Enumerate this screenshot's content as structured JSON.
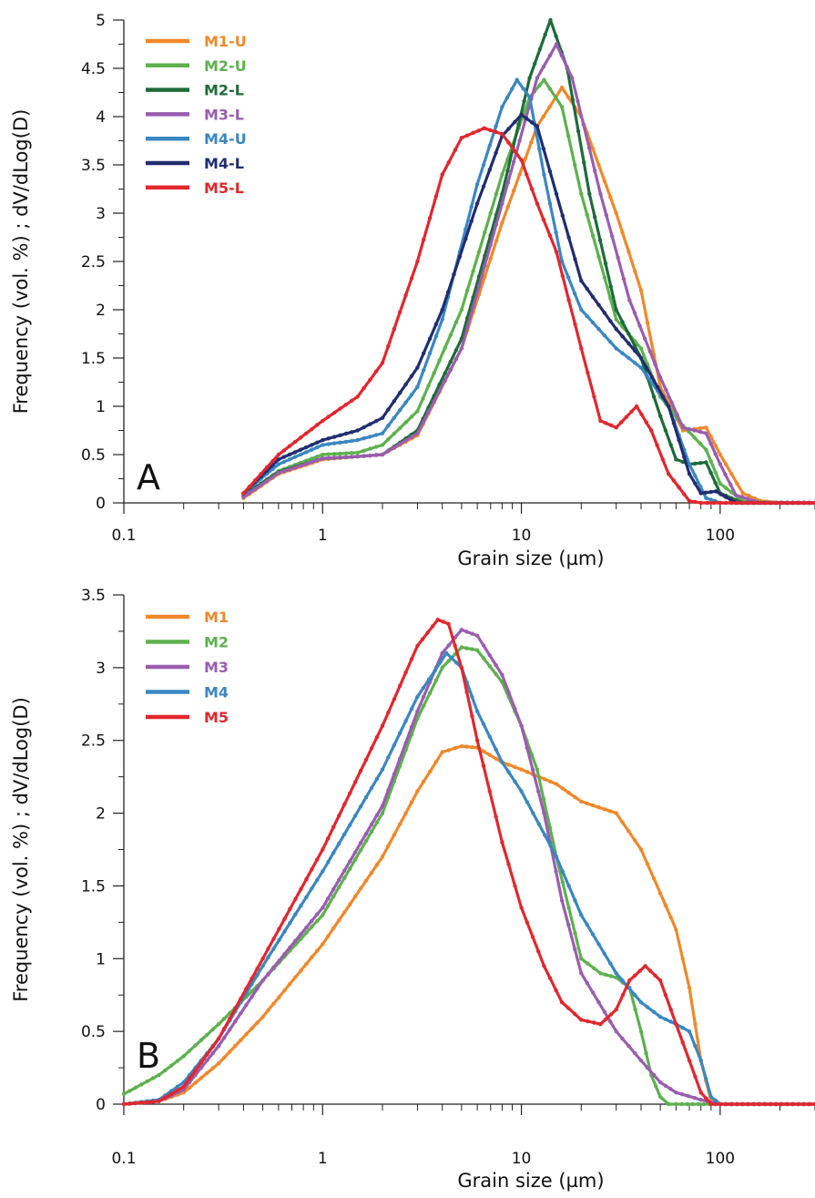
{
  "chart_data": [
    {
      "panel": "A",
      "type": "line",
      "xscale": "log",
      "xlim": [
        0.1,
        300
      ],
      "ylim": [
        0,
        5
      ],
      "xticks": [
        0.1,
        1,
        10,
        100
      ],
      "yticks": [
        0,
        0.5,
        1,
        1.5,
        2,
        2.5,
        3,
        3.5,
        4,
        4.5,
        5
      ],
      "xtick_labels": [
        "0.1",
        "1",
        "10",
        "100"
      ],
      "ytick_labels": [
        "0",
        "0.5",
        "1",
        "1.5",
        "2",
        "2.5",
        "3",
        "3.5",
        "4",
        "4.5",
        "5"
      ],
      "xlabel": "Grain size (µm)",
      "ylabel": "Frequency (vol. %) ; dV/dLog(D)",
      "legend_position": "top-left",
      "series": [
        {
          "name": "M1-U",
          "color": "#F0882A",
          "x": [
            0.4,
            0.6,
            1,
            1.5,
            2,
            3,
            5,
            8,
            12,
            16,
            20,
            30,
            40,
            50,
            65,
            85,
            100,
            130,
            160,
            200,
            300
          ],
          "values": [
            0.05,
            0.3,
            0.45,
            0.48,
            0.5,
            0.7,
            1.6,
            2.9,
            3.9,
            4.3,
            4.0,
            3.0,
            2.2,
            1.2,
            0.75,
            0.78,
            0.5,
            0.1,
            0.02,
            0.0,
            0.0
          ]
        },
        {
          "name": "M2-U",
          "color": "#5DB14E",
          "x": [
            0.4,
            0.6,
            1,
            1.5,
            2,
            3,
            5,
            8,
            11,
            13,
            16,
            20,
            30,
            40,
            50,
            65,
            85,
            100,
            130,
            160,
            300
          ],
          "values": [
            0.07,
            0.33,
            0.5,
            0.52,
            0.6,
            0.95,
            2.0,
            3.4,
            4.2,
            4.38,
            4.1,
            3.2,
            1.9,
            1.6,
            1.1,
            0.8,
            0.55,
            0.2,
            0.02,
            0.0,
            0.0
          ]
        },
        {
          "name": "M2-L",
          "color": "#1E6B3A",
          "x": [
            0.4,
            0.6,
            1,
            1.5,
            2,
            3,
            5,
            8,
            11,
            14,
            17,
            22,
            30,
            40,
            50,
            60,
            70,
            85,
            100,
            130,
            300
          ],
          "values": [
            0.08,
            0.32,
            0.46,
            0.48,
            0.5,
            0.75,
            1.7,
            3.2,
            4.4,
            5.0,
            4.5,
            3.2,
            2.0,
            1.5,
            0.9,
            0.45,
            0.4,
            0.42,
            0.1,
            0.0,
            0.0
          ]
        },
        {
          "name": "M3-L",
          "color": "#9A5DB0",
          "x": [
            0.4,
            0.6,
            1,
            1.5,
            2,
            3,
            5,
            8,
            12,
            15,
            18,
            25,
            35,
            50,
            65,
            85,
            100,
            120,
            160,
            300
          ],
          "values": [
            0.06,
            0.31,
            0.46,
            0.48,
            0.5,
            0.72,
            1.6,
            3.1,
            4.4,
            4.75,
            4.4,
            3.2,
            2.1,
            1.3,
            0.78,
            0.72,
            0.4,
            0.08,
            0.0,
            0.0
          ]
        },
        {
          "name": "M4-U",
          "color": "#3A87C2",
          "x": [
            0.4,
            0.6,
            1,
            1.5,
            2,
            3,
            4,
            6,
            8,
            9.5,
            11,
            13,
            16,
            20,
            30,
            40,
            55,
            70,
            85,
            100,
            160,
            300
          ],
          "values": [
            0.1,
            0.4,
            0.6,
            0.65,
            0.72,
            1.2,
            1.9,
            3.3,
            4.1,
            4.38,
            4.2,
            3.4,
            2.5,
            2.0,
            1.6,
            1.4,
            1.0,
            0.4,
            0.05,
            0.0,
            0.0,
            0.0
          ]
        },
        {
          "name": "M4-L",
          "color": "#212D70",
          "x": [
            0.4,
            0.6,
            1,
            1.5,
            2,
            3,
            4,
            6,
            8,
            10,
            12,
            15,
            20,
            30,
            40,
            55,
            70,
            80,
            95,
            120,
            300
          ],
          "values": [
            0.1,
            0.45,
            0.65,
            0.75,
            0.88,
            1.4,
            2.0,
            3.1,
            3.8,
            4.02,
            3.9,
            3.2,
            2.3,
            1.8,
            1.5,
            1.0,
            0.3,
            0.1,
            0.12,
            0.0,
            0.0
          ]
        },
        {
          "name": "M5-L",
          "color": "#E3262E",
          "x": [
            0.4,
            0.6,
            1,
            1.5,
            2,
            3,
            4,
            5,
            6.5,
            8,
            10,
            12,
            15,
            20,
            25,
            30,
            38,
            45,
            55,
            70,
            80,
            100,
            300
          ],
          "values": [
            0.1,
            0.5,
            0.85,
            1.1,
            1.45,
            2.5,
            3.4,
            3.78,
            3.88,
            3.82,
            3.55,
            3.1,
            2.6,
            1.6,
            0.85,
            0.78,
            1.0,
            0.75,
            0.3,
            0.02,
            0.0,
            0.0,
            0.0
          ]
        }
      ]
    },
    {
      "panel": "B",
      "type": "line",
      "xscale": "log",
      "xlim": [
        0.1,
        300
      ],
      "ylim": [
        0,
        3.5
      ],
      "xticks": [
        0.1,
        1,
        10,
        100
      ],
      "yticks": [
        0,
        0.5,
        1,
        1.5,
        2,
        2.5,
        3,
        3.5
      ],
      "xtick_labels": [
        "0.1",
        "1",
        "10",
        "100"
      ],
      "ytick_labels": [
        "0",
        "0.5",
        "1",
        "1.5",
        "2",
        "2.5",
        "3",
        "3.5"
      ],
      "xlabel": "Grain size (µm)",
      "ylabel": "Frequency (vol. %) ; dV/dLog(D)",
      "legend_position": "top-left",
      "series": [
        {
          "name": "M1",
          "color": "#F0882A",
          "x": [
            0.1,
            0.15,
            0.2,
            0.3,
            0.5,
            1,
            2,
            3,
            4,
            5,
            6,
            8,
            10,
            15,
            20,
            30,
            40,
            50,
            60,
            70,
            80,
            90,
            100,
            300
          ],
          "values": [
            0.0,
            0.02,
            0.08,
            0.28,
            0.6,
            1.1,
            1.7,
            2.15,
            2.42,
            2.46,
            2.45,
            2.35,
            2.3,
            2.2,
            2.08,
            2.0,
            1.75,
            1.45,
            1.2,
            0.8,
            0.3,
            0.02,
            0.0,
            0.0
          ]
        },
        {
          "name": "M2",
          "color": "#5DB14E",
          "x": [
            0.1,
            0.15,
            0.2,
            0.3,
            0.5,
            1,
            2,
            3,
            4,
            5,
            6,
            8,
            10,
            12,
            15,
            20,
            25,
            30,
            35,
            40,
            45,
            50,
            55,
            60,
            300
          ],
          "values": [
            0.07,
            0.2,
            0.33,
            0.55,
            0.85,
            1.3,
            2.0,
            2.65,
            3.0,
            3.14,
            3.12,
            2.9,
            2.6,
            2.3,
            1.7,
            1.0,
            0.9,
            0.87,
            0.8,
            0.5,
            0.2,
            0.05,
            0.0,
            0.0,
            0.0
          ]
        },
        {
          "name": "M3",
          "color": "#9A5DB0",
          "x": [
            0.1,
            0.15,
            0.2,
            0.3,
            0.5,
            1,
            2,
            3,
            4,
            5,
            6,
            8,
            10,
            13,
            16,
            20,
            30,
            40,
            50,
            60,
            80,
            100,
            300
          ],
          "values": [
            0.0,
            0.02,
            0.1,
            0.4,
            0.85,
            1.35,
            2.05,
            2.7,
            3.1,
            3.26,
            3.22,
            2.95,
            2.6,
            2.0,
            1.4,
            0.9,
            0.5,
            0.3,
            0.15,
            0.08,
            0.03,
            0.0,
            0.0
          ]
        },
        {
          "name": "M4",
          "color": "#3A87C2",
          "x": [
            0.1,
            0.15,
            0.2,
            0.3,
            0.5,
            1,
            2,
            3,
            4.2,
            5,
            6,
            8,
            10,
            15,
            20,
            30,
            40,
            50,
            60,
            70,
            80,
            90,
            100,
            300
          ],
          "values": [
            0.0,
            0.03,
            0.15,
            0.45,
            0.95,
            1.6,
            2.3,
            2.8,
            3.1,
            3.0,
            2.7,
            2.35,
            2.15,
            1.7,
            1.3,
            0.9,
            0.7,
            0.6,
            0.55,
            0.5,
            0.3,
            0.05,
            0.0,
            0.0
          ]
        },
        {
          "name": "M5",
          "color": "#E3262E",
          "x": [
            0.1,
            0.15,
            0.2,
            0.3,
            0.5,
            1,
            2,
            3,
            3.8,
            4.3,
            5,
            6,
            8,
            10,
            13,
            16,
            20,
            25,
            30,
            35,
            42,
            50,
            60,
            70,
            80,
            90,
            100,
            300
          ],
          "values": [
            0.0,
            0.02,
            0.12,
            0.45,
            1.0,
            1.75,
            2.6,
            3.15,
            3.33,
            3.3,
            3.0,
            2.5,
            1.8,
            1.35,
            0.95,
            0.7,
            0.58,
            0.55,
            0.65,
            0.85,
            0.95,
            0.85,
            0.55,
            0.3,
            0.08,
            0.0,
            0.0,
            0.0
          ]
        }
      ]
    }
  ]
}
